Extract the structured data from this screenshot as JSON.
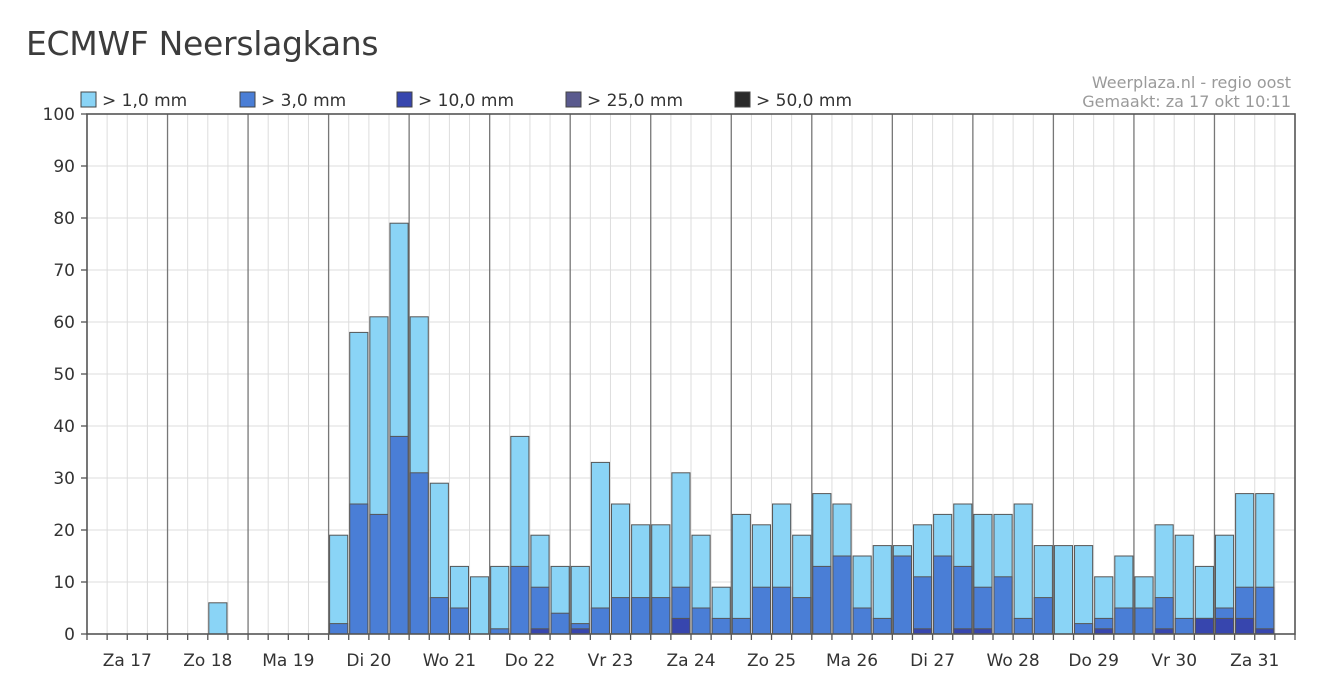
{
  "page_title": "ECMWF Neerslagkans",
  "source_line1": "Weerplaza.nl - regio oost",
  "source_line2": "Gemaakt: za 17 okt 10:11",
  "chart_data": {
    "type": "bar",
    "stacking": "overlapping",
    "title": "ECMWF Neerslagkans",
    "ylim": [
      0,
      100
    ],
    "yticks": [
      "0",
      "10",
      "20",
      "30",
      "40",
      "50",
      "60",
      "70",
      "80",
      "90",
      "100"
    ],
    "grid": true,
    "legend_position": "top-left",
    "days": [
      "Za 17",
      "Zo 18",
      "Ma 19",
      "Di 20",
      "Wo 21",
      "Do 22",
      "Vr 23",
      "Za 24",
      "Zo 25",
      "Ma 26",
      "Di 27",
      "Wo 28",
      "Do 29",
      "Vr 30",
      "Za 31"
    ],
    "periods_per_day": 4,
    "series": [
      {
        "name": "> 1,0 mm",
        "color": "#8ad4f6",
        "values": [
          0,
          0,
          0,
          0,
          0,
          0,
          6,
          0,
          0,
          0,
          0,
          0,
          19,
          58,
          61,
          79,
          61,
          29,
          13,
          11,
          13,
          38,
          19,
          13,
          13,
          33,
          25,
          21,
          21,
          31,
          19,
          9,
          23,
          21,
          25,
          19,
          27,
          25,
          15,
          17,
          17,
          21,
          23,
          25,
          23,
          23,
          25,
          17,
          17,
          17,
          11,
          15,
          11,
          21,
          19,
          13,
          19,
          27,
          27
        ]
      },
      {
        "name": "> 3,0 mm",
        "color": "#4a7ed6",
        "values": [
          0,
          0,
          0,
          0,
          0,
          0,
          0,
          0,
          0,
          0,
          0,
          0,
          2,
          25,
          23,
          38,
          31,
          7,
          5,
          0,
          1,
          13,
          9,
          4,
          2,
          5,
          7,
          7,
          7,
          9,
          5,
          3,
          3,
          9,
          9,
          7,
          13,
          15,
          5,
          3,
          15,
          11,
          15,
          13,
          9,
          11,
          3,
          7,
          0,
          2,
          3,
          5,
          5,
          7,
          3,
          3,
          5,
          9,
          9
        ]
      },
      {
        "name": "> 10,0 mm",
        "color": "#3746ae",
        "values": [
          0,
          0,
          0,
          0,
          0,
          0,
          0,
          0,
          0,
          0,
          0,
          0,
          0,
          0,
          0,
          0,
          0,
          0,
          0,
          0,
          0,
          0,
          1,
          0,
          1,
          0,
          0,
          0,
          0,
          3,
          0,
          0,
          0,
          0,
          0,
          0,
          0,
          0,
          0,
          0,
          0,
          1,
          0,
          1,
          1,
          0,
          0,
          0,
          0,
          0,
          1,
          0,
          0,
          1,
          0,
          3,
          3,
          3,
          1
        ]
      },
      {
        "name": "> 25,0 mm",
        "color": "#5a5a8e",
        "values": []
      },
      {
        "name": "> 50,0 mm",
        "color": "#2a2a2a",
        "values": []
      }
    ]
  }
}
